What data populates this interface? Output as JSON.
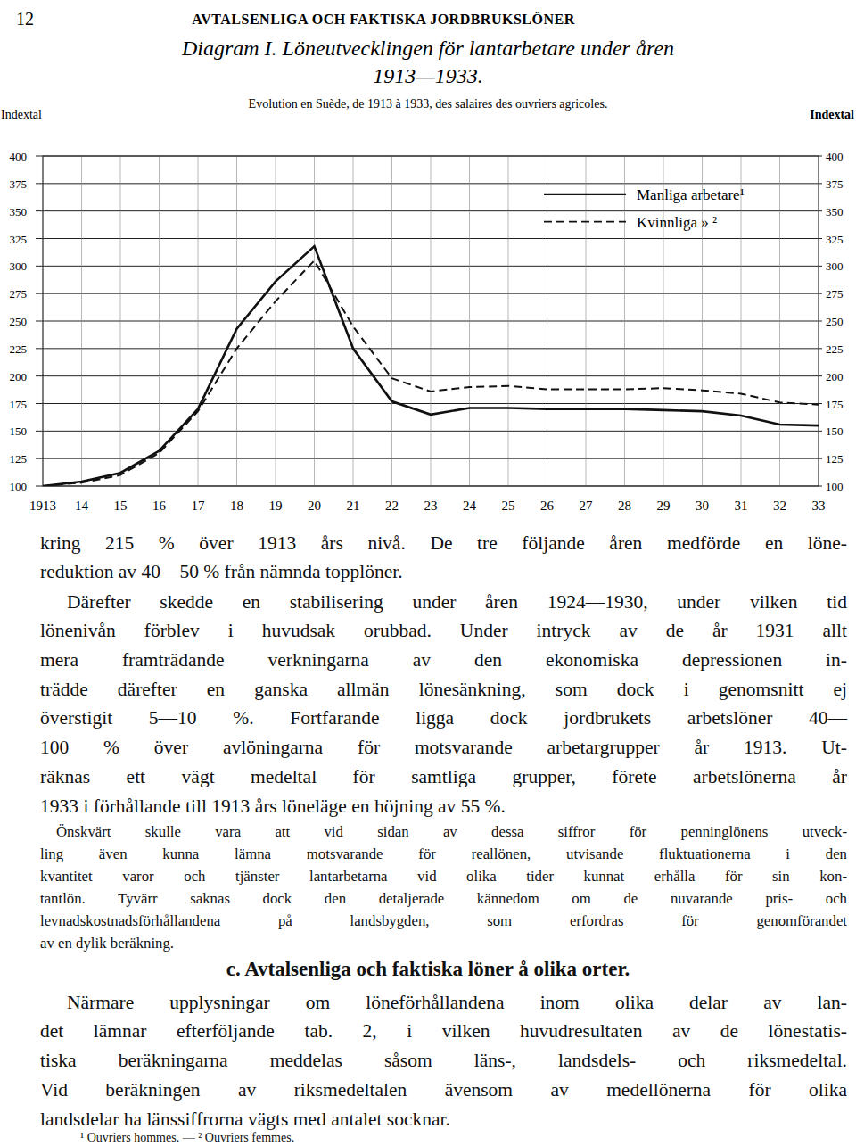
{
  "header": {
    "page_number": "12",
    "running_head": "AVTALSENLIGA OCH FAKTISKA JORDBRUKSLÖNER"
  },
  "chart_data": {
    "type": "line",
    "title": [
      "Diagram I. Löneutvecklingen för lantarbetare under åren",
      "1913—1933."
    ],
    "subtitle": "Evolution en Suède, de 1913 à 1933, des salaires des ouvriers agricoles.",
    "ylabel": "Indextal",
    "x": [
      1913,
      1914,
      1915,
      1916,
      1917,
      1918,
      1919,
      1920,
      1921,
      1922,
      1923,
      1924,
      1925,
      1926,
      1927,
      1928,
      1929,
      1930,
      1931,
      1932,
      1933
    ],
    "series": [
      {
        "name": "Manliga arbetare¹",
        "color": "#111111",
        "line_style": "solid",
        "values": [
          100,
          104,
          112,
          132,
          170,
          243,
          286,
          318,
          225,
          177,
          165,
          171,
          171,
          170,
          170,
          170,
          169,
          168,
          164,
          156,
          155
        ]
      },
      {
        "name": "Kvinnliga » ²",
        "color": "#111111",
        "line_style": "dashed",
        "values": [
          100,
          103,
          110,
          130,
          168,
          225,
          268,
          305,
          245,
          198,
          186,
          190,
          191,
          188,
          188,
          188,
          189,
          187,
          184,
          176,
          174
        ]
      }
    ],
    "xlim": [
      1913,
      1933
    ],
    "xticks": [
      1913,
      {
        "value": 1914,
        "label": "14"
      },
      {
        "value": 1915,
        "label": "15"
      },
      {
        "value": 1916,
        "label": "16"
      },
      {
        "value": 1917,
        "label": "17"
      },
      {
        "value": 1918,
        "label": "18"
      },
      {
        "value": 1919,
        "label": "19"
      },
      {
        "value": 1920,
        "label": "20"
      },
      {
        "value": 1921,
        "label": "21"
      },
      {
        "value": 1922,
        "label": "22"
      },
      {
        "value": 1923,
        "label": "23"
      },
      {
        "value": 1924,
        "label": "24"
      },
      {
        "value": 1925,
        "label": "25"
      },
      {
        "value": 1926,
        "label": "26"
      },
      {
        "value": 1927,
        "label": "27"
      },
      {
        "value": 1928,
        "label": "28"
      },
      {
        "value": 1929,
        "label": "29"
      },
      {
        "value": 1930,
        "label": "30"
      },
      {
        "value": 1931,
        "label": "31"
      },
      {
        "value": 1932,
        "label": "32"
      },
      {
        "value": 1933,
        "label": "33"
      }
    ],
    "ylim": [
      100,
      400
    ],
    "yticks": [
      100,
      125,
      150,
      175,
      200,
      225,
      250,
      275,
      300,
      325,
      350,
      375,
      400
    ],
    "grid": true,
    "legend": "top-right"
  },
  "body": [
    {
      "kind": "text",
      "indent": false,
      "lines": [
        "kring 215 % över 1913 års nivå. De tre följande åren medförde en löne-",
        "reduktion av 40—50 % från nämnda topplöner."
      ]
    },
    {
      "kind": "text",
      "indent": true,
      "lines": [
        "Därefter skedde en stabilisering under åren 1924—1930, under vilken tid",
        "lönenivån förblev i huvudsak orubbad. Under intryck av de år 1931 allt",
        "mera framträdande verkningarna av den ekonomiska depressionen in-",
        "trädde därefter en ganska allmän lönesänkning, som dock i genomsnitt ej",
        "överstigit 5—10 %. Fortfarande ligga dock jordbrukets arbetslöner 40—",
        "100 % över avlöningarna för motsvarande arbetargrupper år 1913. Ut-",
        "räknas ett vägt medeltal för samtliga grupper, förete arbetslönerna år",
        "1933 i förhållande till 1913 års löneläge en höjning av 55 %."
      ]
    },
    {
      "kind": "small",
      "indent": true,
      "lines": [
        "Önskvärt skulle vara att vid sidan av dessa siffror för penninglönens utveck-",
        "ling även kunna lämna motsvarande för reallönen, utvisande fluktuationerna i den",
        "kvantitet varor och tjänster lantarbetarna vid olika tider kunnat erhålla för sin kon-",
        "tantlön. Tyvärr saknas dock den detaljerade kännedom om de nuvarande pris- och",
        "levnadskostnadsförhållandena på landsbygden, som erfordras för genomförandet",
        "av en dylik beräkning."
      ]
    },
    {
      "kind": "heading",
      "indent": false,
      "lines": [
        "c. Avtalsenliga och faktiska löner å olika orter."
      ]
    },
    {
      "kind": "text",
      "indent": true,
      "lines": [
        "Närmare upplysningar om löneförhållandena inom olika delar av lan-",
        "det lämnar efterföljande tab. 2, i vilken huvudresultaten av de lönestatis-",
        "tiska beräkningarna meddelas såsom läns-, landsdels- och riksmedeltal.",
        "Vid beräkningen av riksmedeltalen ävensom av medellönerna för olika",
        "landsdelar ha länssiffrorna vägts med antalet socknar."
      ]
    }
  ],
  "footnote": "¹ Ouvriers hommes. — ² Ouvriers femmes."
}
